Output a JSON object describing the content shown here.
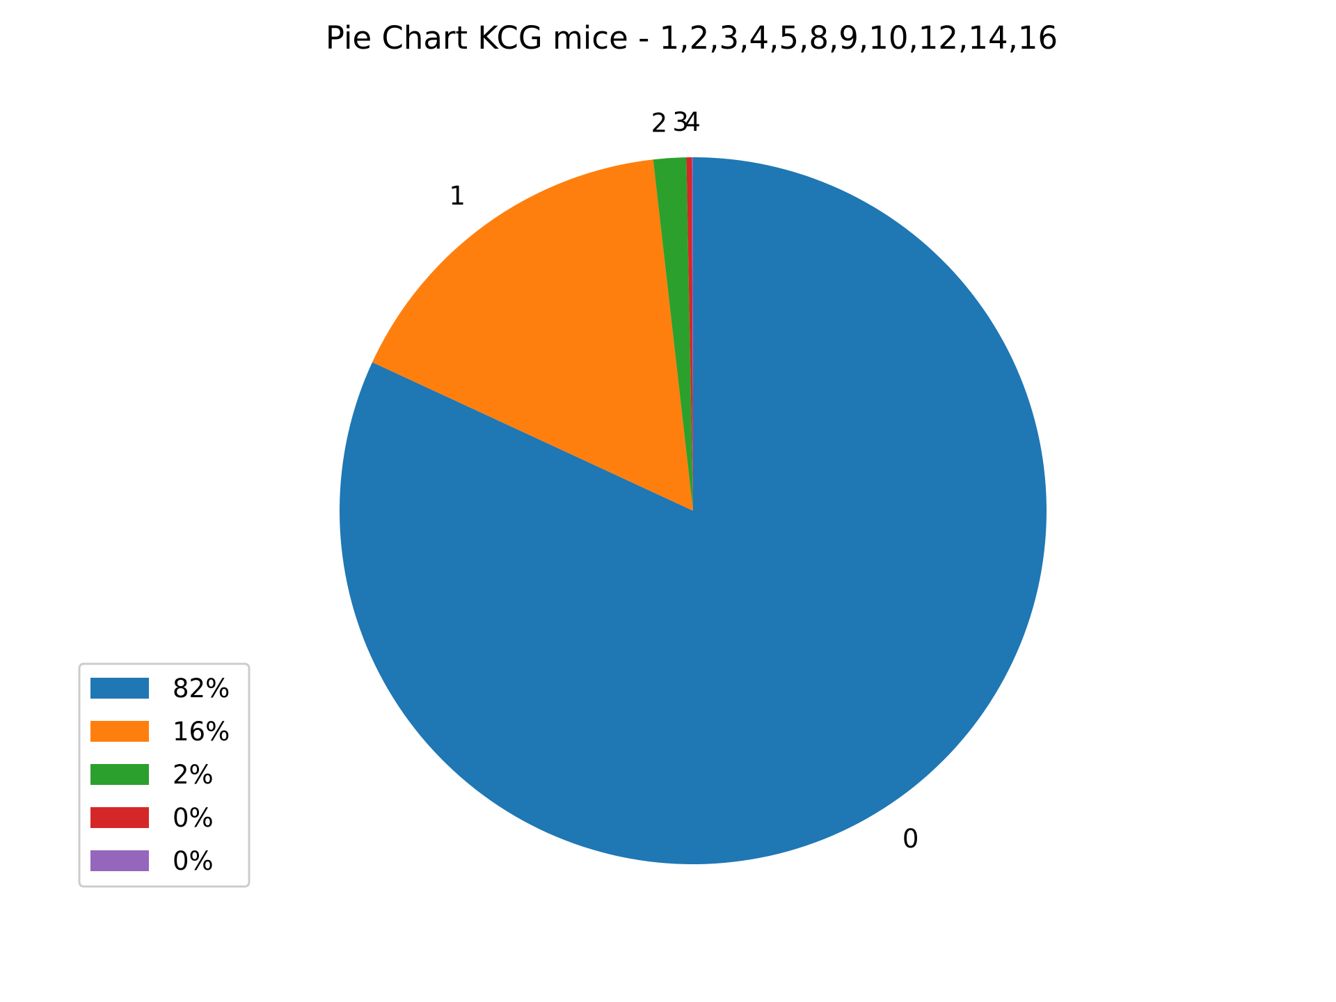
{
  "chart_data": {
    "type": "pie",
    "title": "Pie Chart KCG mice - 1,2,3,4,5,8,9,10,12,14,16",
    "start_angle_deg": 90,
    "direction": "clockwise",
    "slices": [
      {
        "label": "0",
        "legend": "82%",
        "value": 81.9,
        "color": "#1f77b4"
      },
      {
        "label": "1",
        "legend": "16%",
        "value": 16.3,
        "color": "#ff7f0e"
      },
      {
        "label": "2",
        "legend": "2%",
        "value": 1.5,
        "color": "#2ca02c"
      },
      {
        "label": "3",
        "legend": "0%",
        "value": 0.25,
        "color": "#d62728"
      },
      {
        "label": "4",
        "legend": "0%",
        "value": 0.05,
        "color": "#9467bd"
      }
    ],
    "legend_position": "lower-left"
  }
}
